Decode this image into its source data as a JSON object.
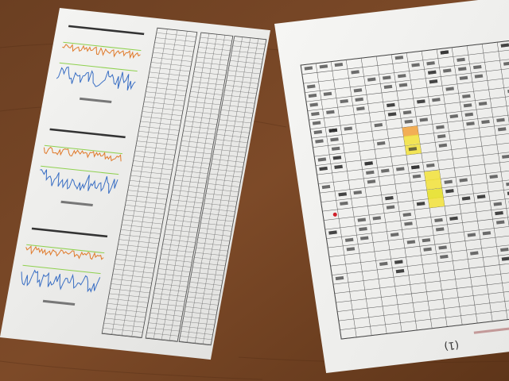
{
  "right_sheet": {
    "title_number": "(1)"
  }
}
